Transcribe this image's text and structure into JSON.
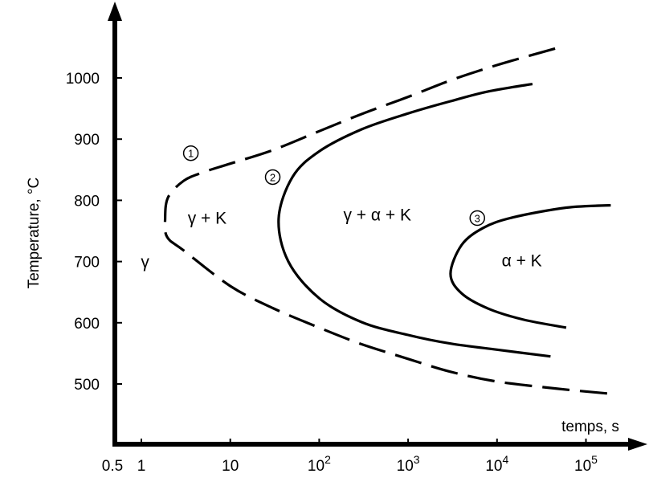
{
  "chart_data": {
    "type": "line",
    "title": "",
    "xlabel": "temps, s",
    "ylabel": "Temperature, °C",
    "x_scale": "log",
    "xlim": [
      0.5,
      200000
    ],
    "ylim": [
      400,
      1070
    ],
    "x_ticks": [
      {
        "value": 0.5,
        "label": "0.5"
      },
      {
        "value": 1,
        "label": "1"
      },
      {
        "value": 10,
        "label": "10"
      },
      {
        "value": 100,
        "label": "10",
        "sup": "2"
      },
      {
        "value": 1000,
        "label": "10",
        "sup": "3"
      },
      {
        "value": 10000,
        "label": "10",
        "sup": "4"
      },
      {
        "value": 100000,
        "label": "10",
        "sup": "5"
      }
    ],
    "y_ticks": [
      500,
      600,
      700,
      800,
      900,
      1000
    ],
    "grid": false,
    "series": [
      {
        "marker": "1",
        "style": "dashed",
        "points": [
          [
            45000,
            1048
          ],
          [
            10000,
            1021
          ],
          [
            3000,
            996
          ],
          [
            1000,
            969
          ],
          [
            300,
            941
          ],
          [
            100,
            913
          ],
          [
            30,
            882
          ],
          [
            10,
            860
          ],
          [
            5,
            846
          ],
          [
            3,
            832
          ],
          [
            2,
            805
          ],
          [
            1.85,
            770
          ],
          [
            1.95,
            740
          ],
          [
            3,
            718
          ],
          [
            10,
            660
          ],
          [
            30,
            624
          ],
          [
            100,
            592
          ],
          [
            300,
            565
          ],
          [
            1000,
            541
          ],
          [
            3000,
            520
          ],
          [
            10000,
            504
          ],
          [
            50000,
            492
          ],
          [
            190000,
            484
          ]
        ],
        "marker_at": [
          3.6,
          877
        ]
      },
      {
        "marker": "2",
        "style": "solid",
        "points": [
          [
            25000,
            990
          ],
          [
            8000,
            978
          ],
          [
            3000,
            962
          ],
          [
            1000,
            942
          ],
          [
            300,
            916
          ],
          [
            100,
            880
          ],
          [
            50,
            838
          ],
          [
            35,
            770
          ],
          [
            45,
            700
          ],
          [
            100,
            640
          ],
          [
            300,
            601
          ],
          [
            1000,
            580
          ],
          [
            3000,
            566
          ],
          [
            10000,
            556
          ],
          [
            40000,
            545
          ]
        ],
        "marker_at": [
          30,
          838
        ]
      },
      {
        "marker": "3",
        "style": "solid",
        "points": [
          [
            190000,
            792
          ],
          [
            60000,
            788
          ],
          [
            15000,
            772
          ],
          [
            7000,
            755
          ],
          [
            4000,
            727
          ],
          [
            3000,
            680
          ],
          [
            4000,
            648
          ],
          [
            8000,
            623
          ],
          [
            20000,
            605
          ],
          [
            60000,
            592
          ]
        ],
        "marker_at": [
          6000,
          771
        ]
      }
    ],
    "regions": [
      {
        "label": "γ",
        "x": 1.1,
        "y": 690
      },
      {
        "label": "γ + K",
        "x": 5.5,
        "y": 762
      },
      {
        "label": "γ + α + K",
        "x": 450,
        "y": 767
      },
      {
        "label": "α + K",
        "x": 19000,
        "y": 692
      }
    ]
  }
}
